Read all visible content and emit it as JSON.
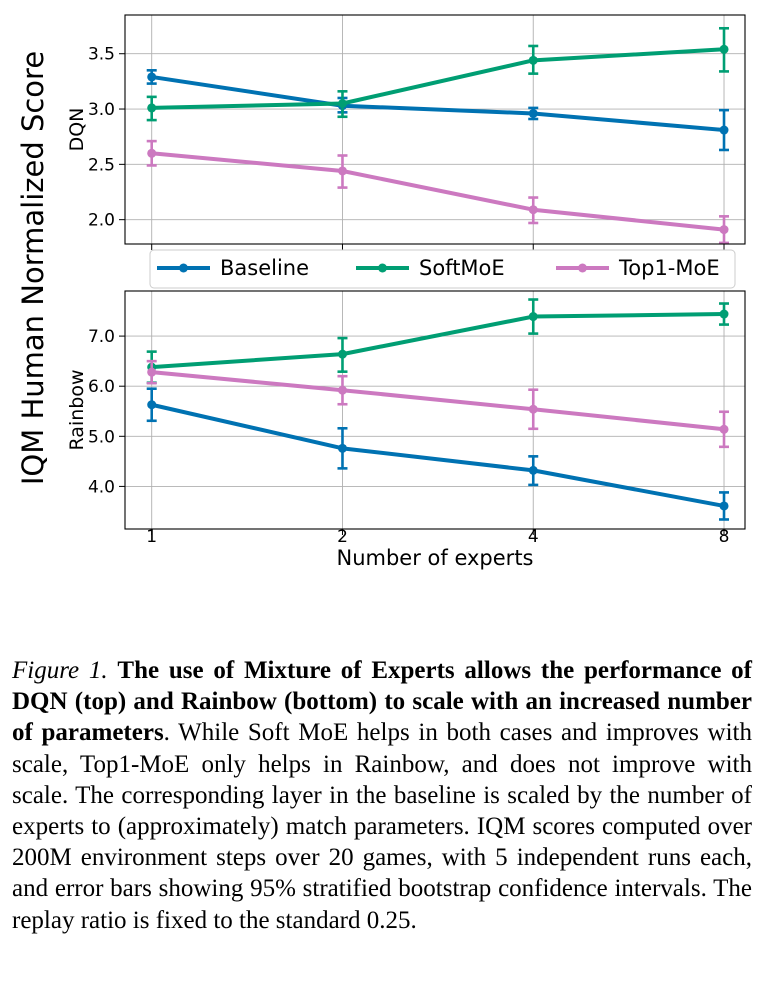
{
  "chart_data": {
    "type": "line",
    "ylabel": "IQM Human Normalized Score",
    "xlabel": "Number of experts",
    "x": [
      1,
      2,
      4,
      8
    ],
    "x_scale": "log2",
    "xticks": [
      "1",
      "2",
      "4",
      "8"
    ],
    "grid": true,
    "legend_placement": "between panels, horizontal",
    "legend": [
      "Baseline",
      "SoftMoE",
      "Top1-MoE"
    ],
    "colors": {
      "Baseline": "#0072b2",
      "SoftMoE": "#009e73",
      "Top1-MoE": "#cc79c0"
    },
    "panels": [
      {
        "ylabel": "DQN",
        "ylim": [
          1.78,
          3.85
        ],
        "yticks": [
          "2.0",
          "2.5",
          "3.0",
          "3.5"
        ],
        "series": [
          {
            "name": "Baseline",
            "values": [
              3.29,
              3.03,
              2.96,
              2.81
            ],
            "lower": [
              3.23,
              2.97,
              2.91,
              2.63
            ],
            "upper": [
              3.35,
              3.1,
              3.01,
              2.99
            ]
          },
          {
            "name": "SoftMoE",
            "values": [
              3.01,
              3.05,
              3.44,
              3.54
            ],
            "lower": [
              2.9,
              2.93,
              3.32,
              3.34
            ],
            "upper": [
              3.11,
              3.16,
              3.57,
              3.73
            ]
          },
          {
            "name": "Top1-MoE",
            "values": [
              2.6,
              2.44,
              2.09,
              1.91
            ],
            "lower": [
              2.49,
              2.29,
              1.97,
              1.79
            ],
            "upper": [
              2.71,
              2.58,
              2.2,
              2.03
            ]
          }
        ]
      },
      {
        "ylabel": "Rainbow",
        "ylim": [
          3.15,
          7.9
        ],
        "yticks": [
          "4.0",
          "5.0",
          "6.0",
          "7.0"
        ],
        "series": [
          {
            "name": "Baseline",
            "values": [
              5.63,
              4.76,
              4.32,
              3.61
            ],
            "lower": [
              5.31,
              4.36,
              4.03,
              3.34
            ],
            "upper": [
              5.95,
              5.16,
              4.6,
              3.88
            ]
          },
          {
            "name": "SoftMoE",
            "values": [
              6.38,
              6.64,
              7.39,
              7.44
            ],
            "lower": [
              6.07,
              6.29,
              7.05,
              7.23
            ],
            "upper": [
              6.69,
              6.96,
              7.73,
              7.65
            ]
          },
          {
            "name": "Top1-MoE",
            "values": [
              6.28,
              5.92,
              5.54,
              5.14
            ],
            "lower": [
              6.06,
              5.64,
              5.15,
              4.79
            ],
            "upper": [
              6.5,
              6.2,
              5.93,
              5.49
            ]
          }
        ]
      }
    ]
  },
  "caption": {
    "label": "Figure 1.",
    "bold": "The use of Mixture of Experts allows the performance of DQN (top) and Rainbow (bottom) to scale with an increased number of parameters",
    "rest": ".  While Soft MoE helps in both cases and improves with scale, Top1-MoE only helps in Rainbow, and does not improve with scale.  The corresponding layer in the baseline is scaled by the number of experts to (approximately) match parameters. IQM scores computed over 200M environment steps over 20 games, with 5 independent runs each, and error bars showing 95% stratified bootstrap confidence intervals. The replay ratio is fixed to the standard 0.25."
  }
}
